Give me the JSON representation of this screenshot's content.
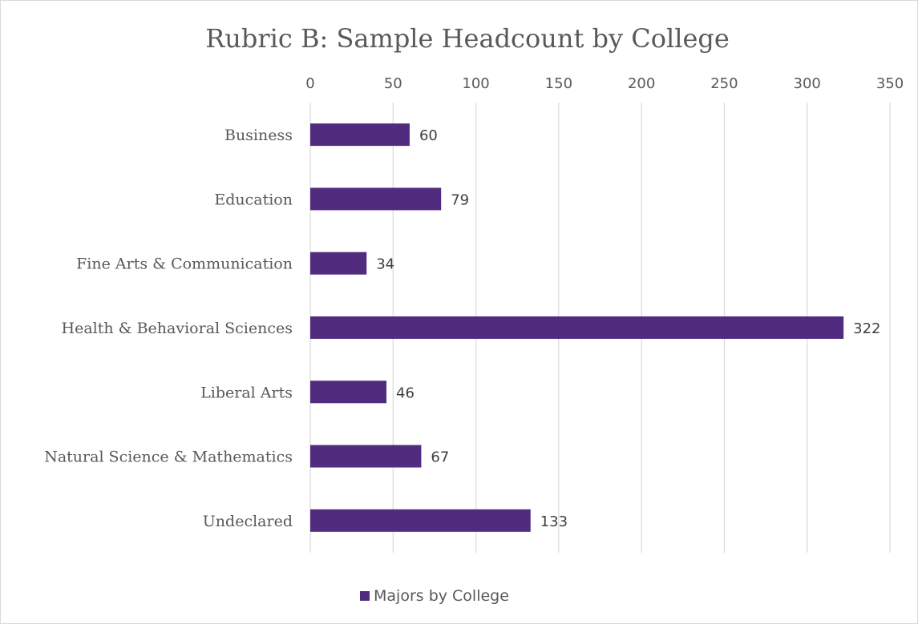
{
  "chart_data": {
    "type": "bar",
    "orientation": "horizontal",
    "title": "Rubric B: Sample Headcount by College",
    "categories": [
      "Business",
      "Education",
      "Fine Arts & Communication",
      "Health & Behavioral Sciences",
      "Liberal Arts",
      "Natural Science & Mathematics",
      "Undeclared"
    ],
    "series": [
      {
        "name": "Majors by College",
        "values": [
          60,
          79,
          34,
          322,
          46,
          67,
          133
        ],
        "color": "#512c7e"
      }
    ],
    "xlim": [
      0,
      350
    ],
    "x_ticks": [
      0,
      50,
      100,
      150,
      200,
      250,
      300,
      350
    ],
    "x_axis_position": "top",
    "grid": true,
    "data_labels": true,
    "legend_position": "bottom"
  }
}
